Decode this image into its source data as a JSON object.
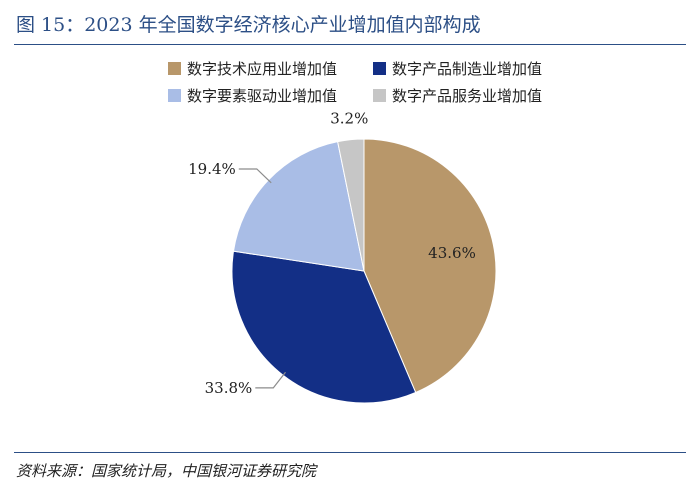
{
  "figure": {
    "title": "图 15：2023 年全国数字经济核心产业增加值内部构成",
    "source": "资料来源：国家统计局，中国银河证券研究院"
  },
  "colors": {
    "title": "#2c4f86",
    "rule": "#2c4f86"
  },
  "chart_data": {
    "type": "pie",
    "title": "",
    "legend_position": "top",
    "start_angle_deg": 0,
    "direction": "clockwise",
    "slices": [
      {
        "name": "数字技术应用业增加值",
        "value": 43.6,
        "label": "43.6%",
        "color": "#b8976a",
        "label_placement": "inside"
      },
      {
        "name": "数字产品制造业增加值",
        "value": 33.8,
        "label": "33.8%",
        "color": "#132f86",
        "label_placement": "outside"
      },
      {
        "name": "数字要素驱动业增加值",
        "value": 19.4,
        "label": "19.4%",
        "color": "#a9bde6",
        "label_placement": "outside"
      },
      {
        "name": "数字产品服务业增加值",
        "value": 3.2,
        "label": "3.2%",
        "color": "#c6c6c6",
        "label_placement": "outside"
      }
    ]
  }
}
